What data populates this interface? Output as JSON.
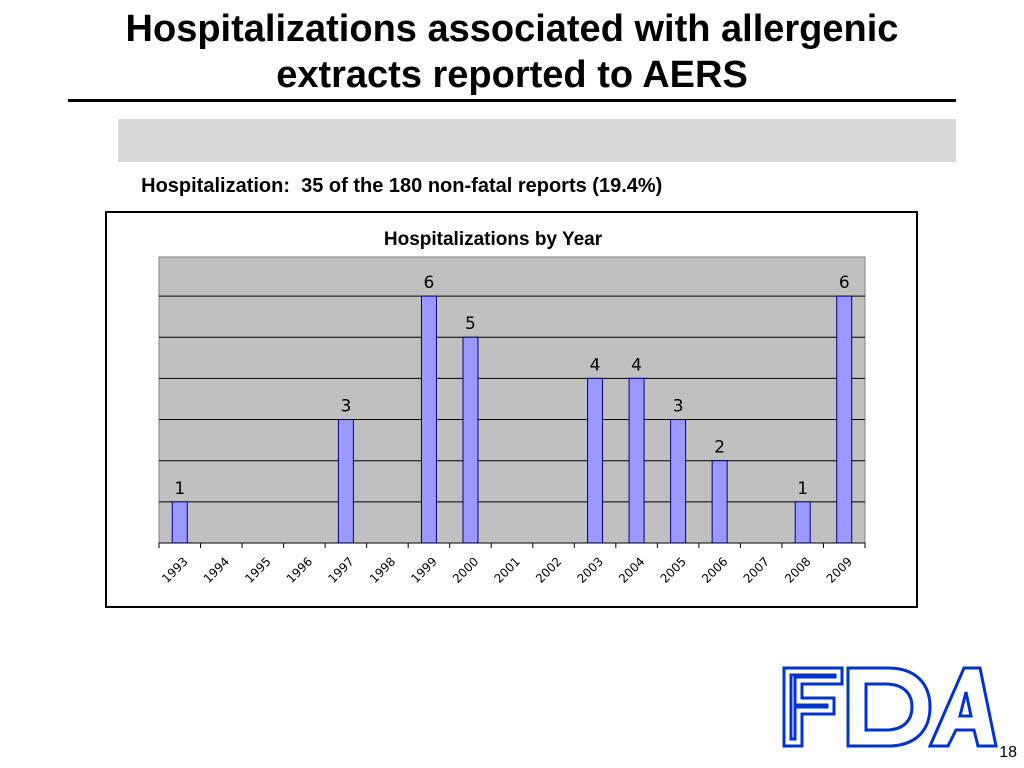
{
  "slide": {
    "title_line1": "Hospitalizations associated with allergenic",
    "title_line2": "extracts reported to AERS",
    "summary": "Hospitalization:  35 of the 180 non-fatal reports (19.4%)",
    "page_number": "18",
    "logo_text": "FDA"
  },
  "chart_data": {
    "type": "bar",
    "title": "Hospitalizations by Year",
    "xlabel": "",
    "ylabel": "",
    "categories": [
      "1993",
      "1994",
      "1995",
      "1996",
      "1997",
      "1998",
      "1999",
      "2000",
      "2001",
      "2002",
      "2003",
      "2004",
      "2005",
      "2006",
      "2007",
      "2008",
      "2009"
    ],
    "values": [
      1,
      0,
      0,
      0,
      3,
      0,
      6,
      5,
      0,
      0,
      4,
      4,
      3,
      2,
      0,
      1,
      6
    ],
    "ylim": [
      0,
      6
    ],
    "grid": true,
    "legend": "none",
    "data_labels": true,
    "colors": {
      "bar_fill": "#9999ff",
      "bar_stroke": "#000080",
      "plot_background": "#c0c0c0",
      "logo_blue": "#0033cc"
    }
  }
}
